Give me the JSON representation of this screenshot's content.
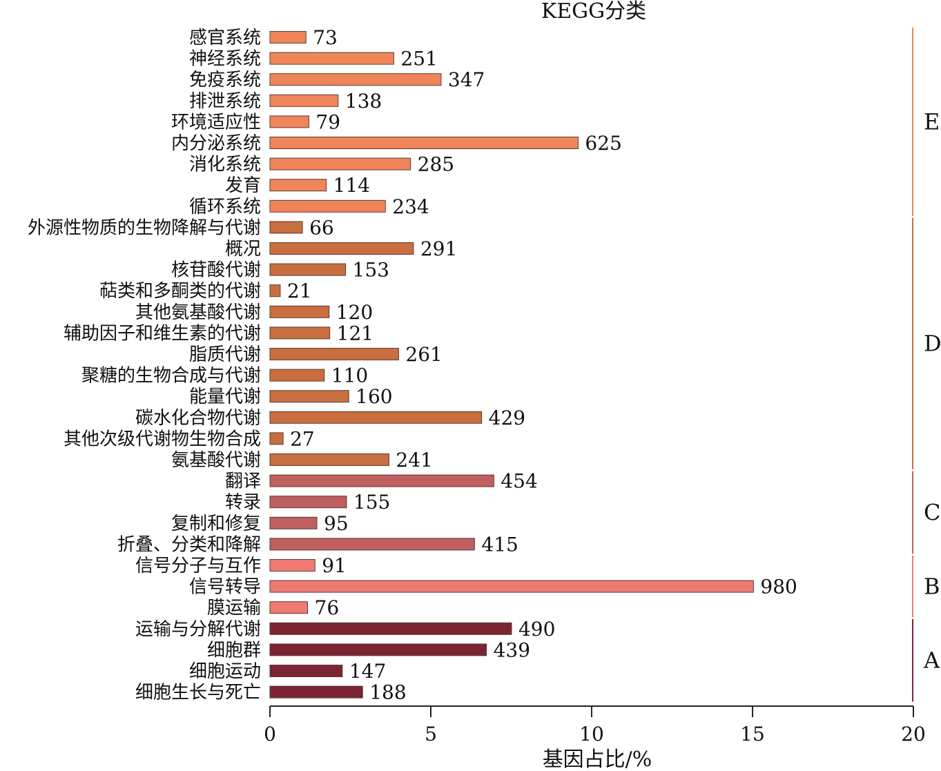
{
  "chart_data": {
    "type": "bar",
    "orientation": "horizontal",
    "title": "KEGG分类",
    "xlabel": "基因占比/%",
    "ylabel": "",
    "xlim": [
      0,
      20
    ],
    "xticks": [
      0,
      5,
      10,
      15,
      20
    ],
    "xtick_labels": [
      "0",
      "5",
      "10",
      "15",
      "20"
    ],
    "grid": false,
    "legend": "none",
    "categories": [
      "感官系统",
      "神经系统",
      "免疫系统",
      "排泄系统",
      "环境适应性",
      "内分泌系统",
      "消化系统",
      "发育",
      "循环系统",
      "外源性物质的生物降解与代谢",
      "概况",
      "核苷酸代谢",
      "萜类和多酮类的代谢",
      "其他氨基酸代谢",
      "辅助因子和维生素的代谢",
      "脂质代谢",
      "聚糖的生物合成与代谢",
      "能量代谢",
      "碳水化合物代谢",
      "其他次级代谢物生物合成",
      "氨基酸代谢",
      "翻译",
      "转录",
      "复制和修复",
      "折叠、分类和降解",
      "信号分子与互作",
      "信号转导",
      "膜运输",
      "运输与分解代谢",
      "细胞群",
      "细胞运动",
      "细胞生长与死亡"
    ],
    "counts": [
      73,
      251,
      347,
      138,
      79,
      625,
      285,
      114,
      234,
      66,
      291,
      153,
      21,
      120,
      121,
      261,
      110,
      160,
      429,
      27,
      241,
      454,
      155,
      95,
      415,
      91,
      980,
      76,
      490,
      439,
      147,
      188
    ],
    "count_labels": [
      "73",
      "251",
      "347",
      "138",
      "79",
      "625",
      "285",
      "114",
      "234",
      "66",
      "291",
      "153",
      "21",
      "120",
      "121",
      "261",
      "110",
      "160",
      "429",
      "27",
      "241",
      "454",
      "155",
      "95",
      "415",
      "91",
      "980",
      "76",
      "490",
      "439",
      "147",
      "188"
    ],
    "values_percent": [
      1.12,
      3.85,
      5.32,
      2.12,
      1.21,
      9.58,
      4.37,
      1.75,
      3.59,
      1.01,
      4.46,
      2.35,
      0.32,
      1.84,
      1.86,
      4.0,
      1.69,
      2.45,
      6.58,
      0.41,
      3.7,
      6.96,
      2.38,
      1.46,
      6.36,
      1.4,
      15.03,
      1.17,
      7.51,
      6.73,
      2.25,
      2.88
    ],
    "groups": [
      {
        "label": "E",
        "start": 0,
        "end": 8,
        "color": "#f0855a"
      },
      {
        "label": "D",
        "start": 9,
        "end": 20,
        "color": "#c96f3f"
      },
      {
        "label": "C",
        "start": 21,
        "end": 24,
        "color": "#c05f5f"
      },
      {
        "label": "B",
        "start": 25,
        "end": 27,
        "color": "#ef7a72"
      },
      {
        "label": "A",
        "start": 28,
        "end": 31,
        "color": "#7b2434"
      }
    ]
  }
}
